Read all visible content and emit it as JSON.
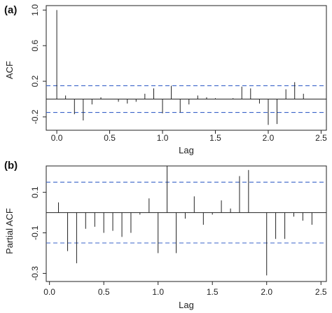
{
  "chart_data": [
    {
      "type": "bar",
      "panel_label": "(a)",
      "xlabel": "Lag",
      "ylabel": "ACF",
      "xlim": [
        -0.1,
        2.55
      ],
      "ylim": [
        -0.35,
        1.05
      ],
      "xticks": [
        0,
        0.5,
        1,
        1.5,
        2,
        2.5
      ],
      "xtick_labels": [
        "0.0",
        "0.5",
        "1.0",
        "1.5",
        "2.0",
        "2.5"
      ],
      "yticks": [
        -0.2,
        0.2,
        0.6,
        1.0
      ],
      "ytick_labels": [
        "-0.2",
        "0.2",
        "0.6",
        "1.0"
      ],
      "conf_limits": [
        0.15,
        -0.15
      ],
      "x": [
        0,
        0.083,
        0.167,
        0.25,
        0.333,
        0.417,
        0.5,
        0.583,
        0.667,
        0.75,
        0.833,
        0.917,
        1.0,
        1.083,
        1.167,
        1.25,
        1.333,
        1.417,
        1.5,
        1.583,
        1.667,
        1.75,
        1.833,
        1.917,
        2.0,
        2.083,
        2.167,
        2.25,
        2.333,
        2.417,
        2.5
      ],
      "values": [
        1.0,
        0.04,
        -0.17,
        -0.24,
        -0.06,
        0.02,
        0.0,
        -0.03,
        -0.05,
        -0.03,
        0.06,
        0.12,
        -0.16,
        0.15,
        -0.15,
        -0.06,
        0.04,
        0.02,
        0.01,
        0.0,
        0.01,
        0.14,
        0.12,
        -0.05,
        -0.29,
        -0.28,
        0.11,
        0.19,
        0.06,
        0.0,
        0.0
      ]
    },
    {
      "type": "bar",
      "panel_label": "(b)",
      "xlabel": "Lag",
      "ylabel": "Partial ACF",
      "xlim": [
        -0.03,
        2.55
      ],
      "ylim": [
        -0.34,
        0.23
      ],
      "xticks": [
        0,
        0.5,
        1,
        1.5,
        2,
        2.5
      ],
      "xtick_labels": [
        "0.0",
        "0.5",
        "1.0",
        "1.5",
        "2.0",
        "2.5"
      ],
      "yticks": [
        -0.3,
        -0.1,
        0.1
      ],
      "ytick_labels": [
        "-0.3",
        "-0.1",
        "0.1"
      ],
      "conf_limits": [
        0.15,
        -0.15
      ],
      "x": [
        0.083,
        0.167,
        0.25,
        0.333,
        0.417,
        0.5,
        0.583,
        0.667,
        0.75,
        0.833,
        0.917,
        1.0,
        1.083,
        1.167,
        1.25,
        1.333,
        1.417,
        1.5,
        1.583,
        1.667,
        1.75,
        1.833,
        1.917,
        2.0,
        2.083,
        2.167,
        2.25,
        2.333,
        2.417,
        2.5
      ],
      "values": [
        0.05,
        -0.19,
        -0.25,
        -0.08,
        -0.07,
        -0.1,
        -0.09,
        -0.12,
        -0.1,
        -0.01,
        0.07,
        -0.2,
        0.23,
        -0.2,
        -0.03,
        0.08,
        -0.06,
        -0.01,
        0.06,
        0.02,
        0.18,
        0.21,
        0.0,
        -0.31,
        -0.13,
        -0.13,
        -0.02,
        -0.04,
        -0.06,
        0.0
      ]
    }
  ]
}
